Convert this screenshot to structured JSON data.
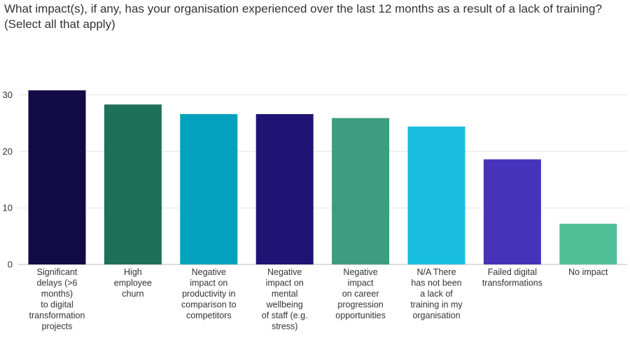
{
  "title_lines": [
    "What impact(s), if any, has your organisation experienced over the last 12 months as a result of a lack of training?",
    "(Select all that apply)"
  ],
  "chart_data": {
    "type": "bar",
    "title": "What impact(s), if any, has your organisation experienced over the last 12 months as a result of a lack of training? (Select all that apply)",
    "xlabel": "",
    "ylabel": "",
    "ylim": [
      0,
      32
    ],
    "yticks": [
      0,
      10,
      20,
      30
    ],
    "grid": true,
    "categories": [
      [
        "Significant",
        "delays (>6",
        "months)",
        "to digital",
        "transformation",
        "projects"
      ],
      [
        "High",
        "employee",
        "churn"
      ],
      [
        "Negative",
        "impact on",
        "productivity in",
        "comparison to",
        "competitors"
      ],
      [
        "Negative",
        "impact on",
        "mental",
        "wellbeing",
        "of staff (e.g.",
        "stress)"
      ],
      [
        "Negative",
        "impact",
        "on career",
        "progression",
        "opportunities"
      ],
      [
        "N/A There",
        "has not been",
        "a lack of",
        "training in my",
        "organisation"
      ],
      [
        "Failed digital",
        "transformations"
      ],
      [
        "No impact"
      ]
    ],
    "values": [
      30.8,
      28.3,
      26.6,
      26.6,
      25.9,
      24.4,
      18.6,
      7.2
    ],
    "colors": [
      "#120a45",
      "#1f7058",
      "#04a1bf",
      "#1f1373",
      "#3e9c7f",
      "#19bddf",
      "#4733b9",
      "#4fbf98"
    ]
  }
}
